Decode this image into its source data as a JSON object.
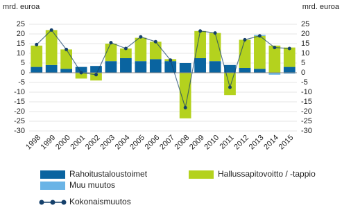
{
  "chart_data": {
    "type": "stacked-bar-line",
    "y_label": "mrd. euroa",
    "y2_label": "mrd. euroa",
    "categories": [
      "1998",
      "1999",
      "2000",
      "2001",
      "2002",
      "2003",
      "2004",
      "2005",
      "2006",
      "2007",
      "2008",
      "2009",
      "2010",
      "2011",
      "2012",
      "2013",
      "2014",
      "2015"
    ],
    "series": [
      {
        "name": "Rahoitustaloustoimet",
        "color": "#0a64a0",
        "kind": "bar",
        "values": [
          3,
          4,
          2,
          3,
          3.5,
          6,
          7.5,
          6,
          7,
          6,
          5,
          7.5,
          6,
          4,
          2.5,
          2,
          0,
          3
        ]
      },
      {
        "name": "Hallussapitovoitto / -tappio",
        "color": "#b4d21e",
        "kind": "bar",
        "values": [
          11,
          18,
          10,
          -3,
          -4,
          9,
          5,
          12,
          9,
          1,
          -23.5,
          14,
          14.5,
          -11.5,
          14.5,
          17,
          14,
          10
        ]
      },
      {
        "name": "Muu muutos",
        "color": "#6ab4e6",
        "kind": "bar",
        "values": [
          0,
          0,
          0,
          0,
          0,
          0,
          0,
          0,
          0,
          0,
          0,
          0,
          0,
          0,
          0,
          0.5,
          -1,
          -0.5
        ]
      },
      {
        "name": "Kokonaismuutos",
        "color": "#15406b",
        "kind": "line",
        "values": [
          14.5,
          22,
          12,
          0,
          -1,
          15.5,
          12.5,
          18.5,
          16,
          6.5,
          -18,
          21.5,
          20.5,
          -7.5,
          17,
          19,
          13,
          12.5
        ]
      }
    ],
    "ylim": [
      -30,
      25
    ],
    "yticks": [
      -30,
      -25,
      -20,
      -15,
      -10,
      -5,
      0,
      5,
      10,
      15,
      20,
      25
    ],
    "y2lim": [
      -30,
      25
    ],
    "y2ticks": [
      -30,
      -25,
      -20,
      -15,
      -10,
      -5,
      0,
      5,
      10,
      15,
      20,
      25
    ]
  }
}
